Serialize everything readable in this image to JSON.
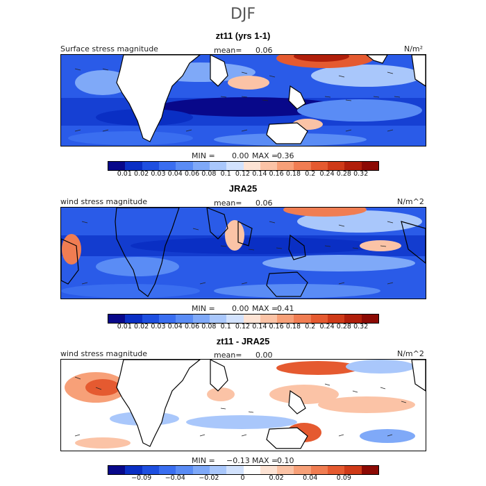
{
  "figure": {
    "title": "DJF"
  },
  "panels": [
    {
      "title": "zt11 (yrs 1-1)",
      "left_label": "Surface stress magnitude",
      "mean_label": "mean=",
      "mean_value": "0.06",
      "units": "N/m²",
      "min_label": "MIN =",
      "min_value": "0.00",
      "max_label": "MAX =",
      "max_value": "0.36"
    },
    {
      "title": "JRA25",
      "left_label": "wind stress magnitude",
      "mean_label": "mean=",
      "mean_value": "0.06",
      "units": "N/m^2",
      "min_label": "MIN =",
      "min_value": "0.00",
      "max_label": "MAX =",
      "max_value": "0.41"
    },
    {
      "title": "zt11 - JRA25",
      "left_label": "wind stress magnitude",
      "mean_label": "mean=",
      "mean_value": "0.00",
      "units": "N/m^2",
      "min_label": "MIN =",
      "min_value": "−0.13",
      "max_label": "MAX =",
      "max_value": "0.10"
    }
  ],
  "colorbars": {
    "magnitude": {
      "colors": [
        "#08088a",
        "#0a2fc4",
        "#1e4fe0",
        "#3a6ef0",
        "#5a8cf5",
        "#7fa9f8",
        "#a9c7fb",
        "#d2e2fd",
        "#fde3d4",
        "#fbc3a6",
        "#f7a078",
        "#f07d52",
        "#e55a30",
        "#cf3a18",
        "#b01e0a",
        "#8c0a04"
      ],
      "labels": [
        "0.01",
        "0.02",
        "0.03",
        "0.04",
        "0.06",
        "0.08",
        "0.1",
        "0.12",
        "0.14",
        "0.16",
        "0.18",
        "0.2",
        "0.24",
        "0.28",
        "0.32"
      ]
    },
    "difference": {
      "colors": [
        "#08088a",
        "#0a2fc4",
        "#1e4fe0",
        "#3a6ef0",
        "#5a8cf5",
        "#7fa9f8",
        "#a9c7fb",
        "#d2e2fd",
        "#ffffff",
        "#fde3d4",
        "#fbc3a6",
        "#f7a078",
        "#f07d52",
        "#e55a30",
        "#cf3a18",
        "#8c0a04"
      ],
      "labels": [
        "−0.09",
        "−0.04",
        "−0.02",
        "0",
        "0.02",
        "0.04",
        "0.09"
      ],
      "label_positions": [
        2,
        4,
        6,
        8,
        10,
        12,
        14
      ]
    }
  },
  "chart_data": [
    {
      "type": "heatmap",
      "title": "zt11 (yrs 1-1)",
      "variable": "Surface stress magnitude",
      "units": "N/m²",
      "mean": 0.06,
      "min": 0.0,
      "max": 0.36,
      "color_levels": [
        0.01,
        0.02,
        0.03,
        0.04,
        0.06,
        0.08,
        0.1,
        0.12,
        0.14,
        0.16,
        0.18,
        0.2,
        0.24,
        0.28,
        0.32
      ],
      "overlay": "wind stress vectors"
    },
    {
      "type": "heatmap",
      "title": "JRA25",
      "variable": "wind stress magnitude",
      "units": "N/m^2",
      "mean": 0.06,
      "min": 0.0,
      "max": 0.41,
      "color_levels": [
        0.01,
        0.02,
        0.03,
        0.04,
        0.06,
        0.08,
        0.1,
        0.12,
        0.14,
        0.16,
        0.18,
        0.2,
        0.24,
        0.28,
        0.32
      ],
      "overlay": "wind stress vectors"
    },
    {
      "type": "heatmap",
      "title": "zt11 - JRA25",
      "variable": "wind stress magnitude",
      "units": "N/m^2",
      "mean": 0.0,
      "min": -0.13,
      "max": 0.1,
      "color_levels": [
        -0.09,
        -0.04,
        -0.02,
        0,
        0.02,
        0.04,
        0.09
      ],
      "overlay": "wind stress difference vectors"
    }
  ]
}
